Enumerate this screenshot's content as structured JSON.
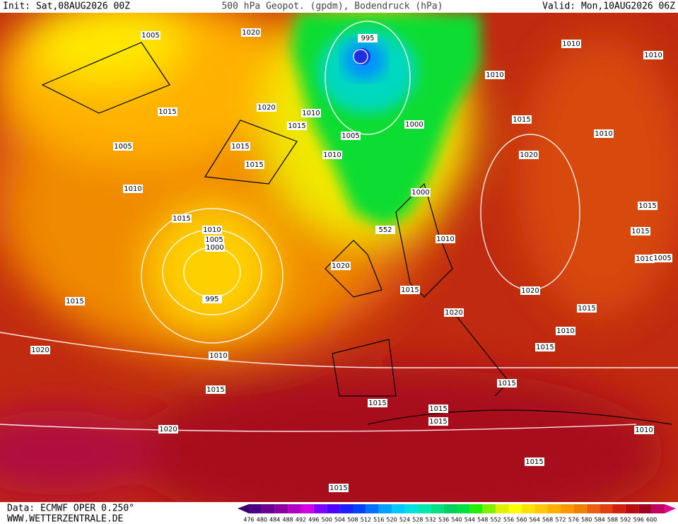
{
  "header": {
    "init": "Init: Sat,08AUG2026 00Z",
    "title": "500 hPa Geopot. (gpdm), Bodendruck (hPa)",
    "valid": "Valid: Mon,10AUG2026 06Z"
  },
  "footer": {
    "source": "Data: ECMWF OPER 0.250°",
    "site": "WWW.WETTERZENTRALE.DE"
  },
  "colorbar": {
    "labels": [
      476,
      480,
      484,
      488,
      492,
      496,
      500,
      504,
      508,
      512,
      516,
      520,
      524,
      528,
      532,
      536,
      540,
      544,
      548,
      552,
      556,
      560,
      564,
      568,
      572,
      576,
      580,
      584,
      588,
      592,
      596,
      600
    ]
  },
  "isobar_labels": [
    "1005",
    "1020",
    "995",
    "1010",
    "1010",
    "1010",
    "1015",
    "1020",
    "1010",
    "1015",
    "1000",
    "1015",
    "1005",
    "1015",
    "1005",
    "1010",
    "1015",
    "1010",
    "1020",
    "1010",
    "1000",
    "1015",
    "552",
    "1015",
    "1010",
    "1005",
    "1000",
    "1015",
    "1010",
    "1010",
    "1005",
    "1020",
    "995",
    "1015",
    "1015",
    "1020",
    "1020",
    "1015",
    "1010",
    "1015",
    "1020",
    "1010",
    "1015",
    "1015",
    "1015",
    "1015",
    "1015",
    "1020",
    "1010",
    "1015",
    "1015"
  ]
}
